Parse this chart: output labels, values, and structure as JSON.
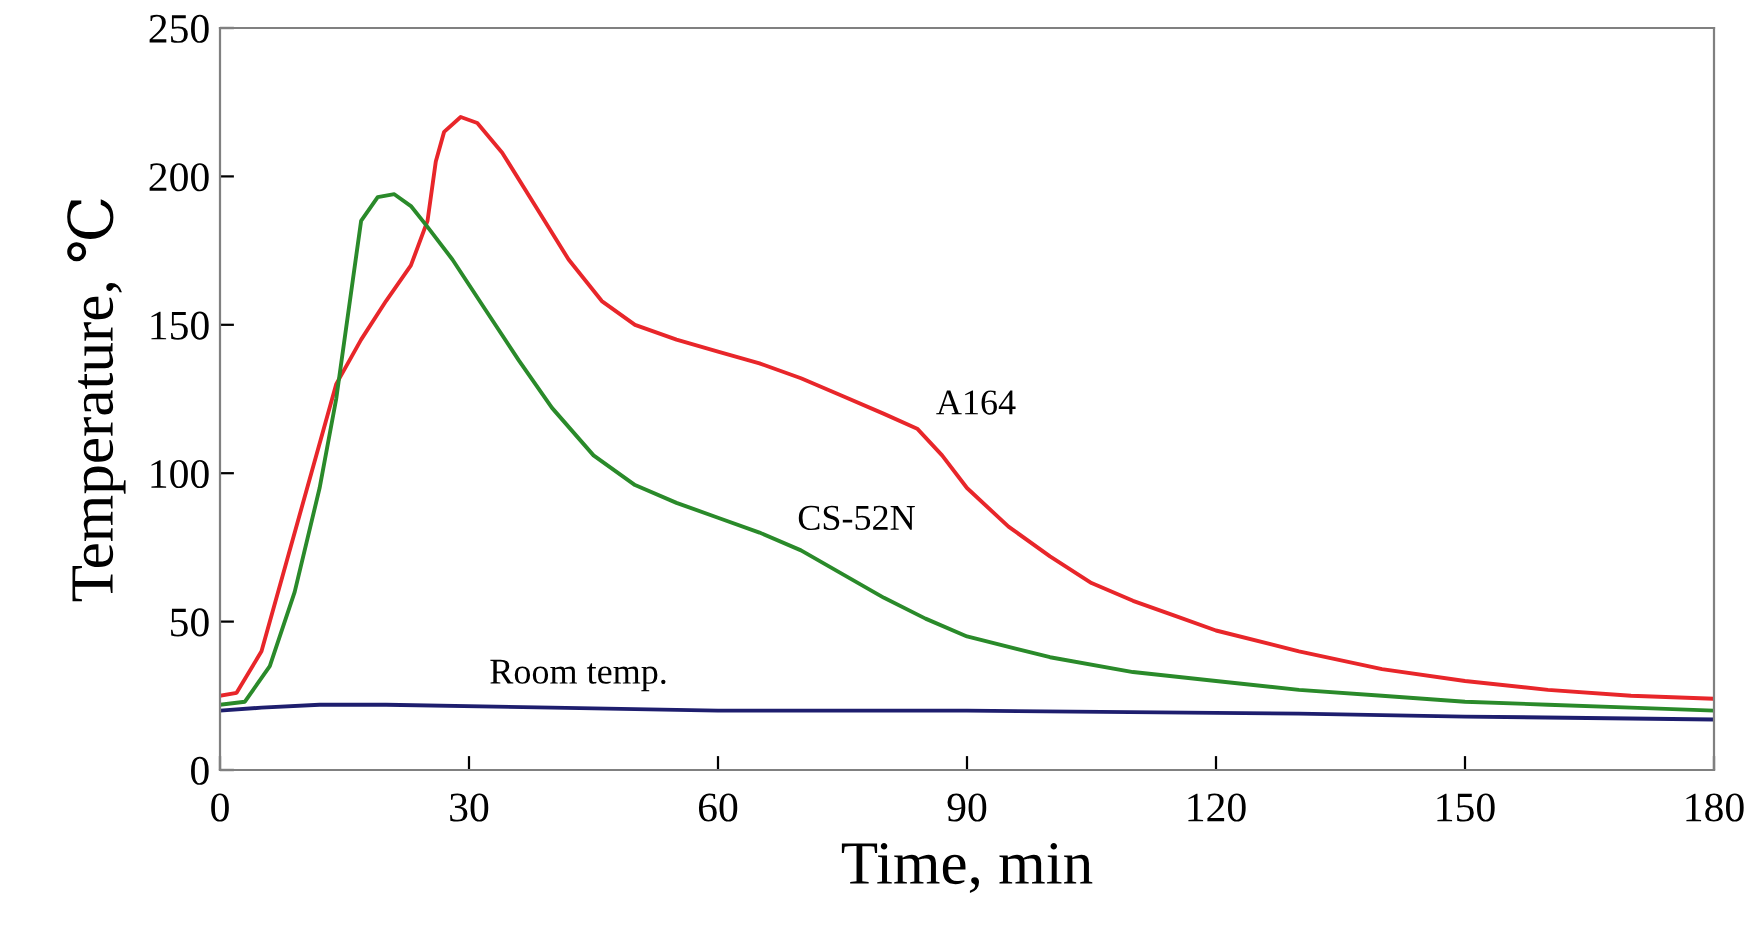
{
  "chart_data": {
    "type": "line",
    "xlabel": "Time, min",
    "ylabel": "Temperature, ℃",
    "xlim": [
      0,
      180
    ],
    "xticks": [
      0,
      30,
      60,
      90,
      120,
      150,
      180
    ],
    "ylim": [
      0,
      250
    ],
    "yticks": [
      0,
      50,
      100,
      150,
      200,
      250
    ],
    "grid": false,
    "legend": false,
    "series": [
      {
        "name": "A164",
        "color": "#e8262a",
        "x": [
          0,
          2,
          5,
          8,
          11,
          14,
          17,
          20,
          23,
          25,
          26,
          27,
          29,
          31,
          34,
          38,
          42,
          46,
          50,
          55,
          60,
          65,
          70,
          75,
          80,
          84,
          87,
          90,
          95,
          100,
          105,
          110,
          115,
          120,
          130,
          140,
          150,
          160,
          170,
          180
        ],
        "values": [
          25,
          26,
          40,
          70,
          100,
          130,
          145,
          158,
          170,
          185,
          205,
          215,
          220,
          218,
          208,
          190,
          172,
          158,
          150,
          145,
          141,
          137,
          132,
          126,
          120,
          115,
          106,
          95,
          82,
          72,
          63,
          57,
          52,
          47,
          40,
          34,
          30,
          27,
          25,
          24
        ]
      },
      {
        "name": "CS-52N",
        "color": "#2a8a2a",
        "x": [
          0,
          3,
          6,
          9,
          12,
          14,
          16,
          17,
          19,
          21,
          23,
          25,
          28,
          32,
          36,
          40,
          45,
          50,
          55,
          60,
          65,
          70,
          75,
          80,
          85,
          90,
          100,
          110,
          120,
          130,
          140,
          150,
          160,
          170,
          180
        ],
        "values": [
          22,
          23,
          35,
          60,
          95,
          125,
          165,
          185,
          193,
          194,
          190,
          183,
          172,
          155,
          138,
          122,
          106,
          96,
          90,
          85,
          80,
          74,
          66,
          58,
          51,
          45,
          38,
          33,
          30,
          27,
          25,
          23,
          22,
          21,
          20
        ]
      },
      {
        "name": "Room temp.",
        "color": "#1e1e6e",
        "x": [
          0,
          5,
          12,
          20,
          40,
          60,
          90,
          130,
          150,
          180
        ],
        "values": [
          20,
          21,
          22,
          22,
          21,
          20,
          20,
          19,
          18,
          17
        ]
      }
    ]
  }
}
